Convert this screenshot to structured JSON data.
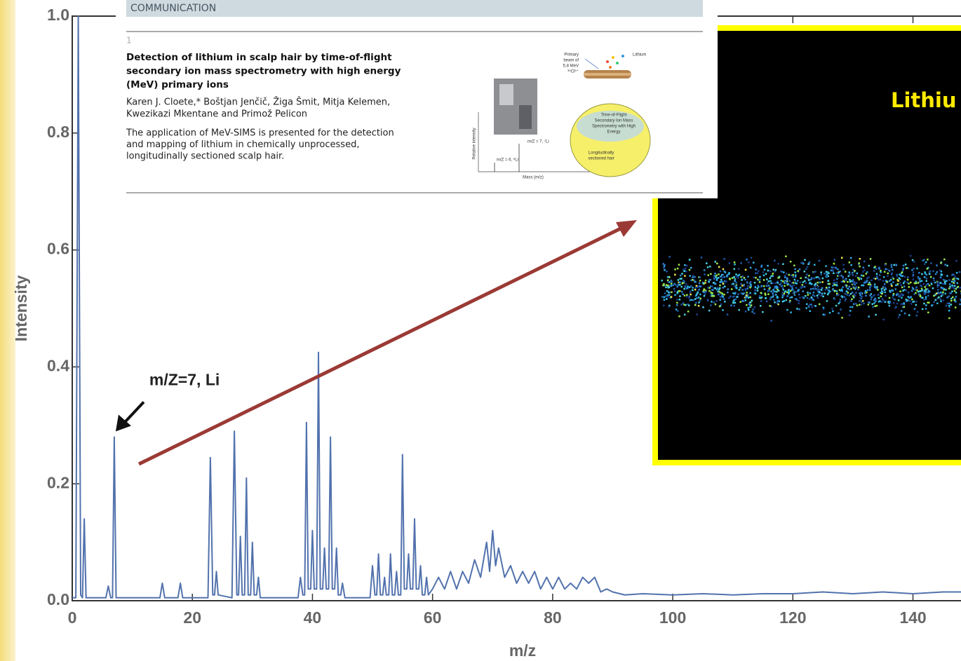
{
  "chart_data": {
    "type": "line",
    "xlabel": "m/z",
    "ylabel": "Intensity",
    "color": "#5272ad",
    "x": [
      0,
      0.6,
      1,
      1.4,
      1.7,
      2,
      2.3,
      5.6,
      6,
      6.4,
      6.7,
      7,
      7.3,
      14.6,
      15,
      15.4,
      17.6,
      18,
      18.4,
      22.6,
      23,
      23.4,
      23.7,
      24,
      24.3,
      26.6,
      27,
      27.4,
      27.7,
      28,
      28.3,
      28.7,
      29,
      29.3,
      29.7,
      30,
      30.3,
      30.7,
      31,
      31.3,
      37.6,
      38,
      38.4,
      38.7,
      39,
      39.3,
      39.7,
      40,
      40.3,
      40.7,
      41,
      41.3,
      41.7,
      42,
      42.3,
      42.7,
      43,
      43.3,
      43.7,
      44,
      44.3,
      44.7,
      45,
      45.4,
      49.6,
      50,
      50.4,
      50.7,
      51,
      51.3,
      51.7,
      52,
      52.3,
      52.7,
      53,
      53.3,
      53.7,
      54,
      54.3,
      54.7,
      55,
      55.3,
      55.7,
      56,
      56.3,
      56.7,
      57,
      57.3,
      57.7,
      58,
      58.3,
      58.7,
      59,
      59.3,
      60,
      61,
      62,
      63,
      64,
      65,
      66,
      67,
      68,
      69,
      69.5,
      70,
      70.5,
      71,
      72,
      73,
      74,
      75,
      76,
      77,
      78,
      79,
      80,
      81,
      82,
      83,
      84,
      85,
      86,
      87,
      88,
      89,
      90,
      92,
      95,
      100,
      105,
      110,
      115,
      120,
      125,
      130,
      135,
      140,
      145,
      148
    ],
    "values": [
      0.005,
      0.005,
      1.0,
      0.01,
      0.005,
      0.14,
      0.005,
      0.005,
      0.025,
      0.005,
      0.005,
      0.28,
      0.005,
      0.005,
      0.03,
      0.005,
      0.005,
      0.03,
      0.005,
      0.005,
      0.245,
      0.01,
      0.01,
      0.05,
      0.01,
      0.005,
      0.29,
      0.01,
      0.01,
      0.11,
      0.01,
      0.01,
      0.21,
      0.01,
      0.01,
      0.1,
      0.01,
      0.01,
      0.04,
      0.005,
      0.005,
      0.04,
      0.01,
      0.01,
      0.305,
      0.02,
      0.02,
      0.12,
      0.02,
      0.02,
      0.425,
      0.02,
      0.02,
      0.09,
      0.02,
      0.02,
      0.28,
      0.02,
      0.02,
      0.09,
      0.01,
      0.01,
      0.03,
      0.005,
      0.005,
      0.06,
      0.01,
      0.01,
      0.08,
      0.01,
      0.01,
      0.04,
      0.01,
      0.01,
      0.08,
      0.01,
      0.01,
      0.05,
      0.01,
      0.01,
      0.25,
      0.02,
      0.02,
      0.08,
      0.02,
      0.02,
      0.14,
      0.02,
      0.02,
      0.06,
      0.01,
      0.01,
      0.04,
      0.01,
      0.02,
      0.04,
      0.02,
      0.05,
      0.02,
      0.05,
      0.03,
      0.07,
      0.04,
      0.1,
      0.05,
      0.12,
      0.06,
      0.09,
      0.04,
      0.06,
      0.03,
      0.05,
      0.03,
      0.05,
      0.02,
      0.04,
      0.02,
      0.04,
      0.02,
      0.03,
      0.02,
      0.04,
      0.03,
      0.04,
      0.015,
      0.02,
      0.015,
      0.01,
      0.012,
      0.01,
      0.012,
      0.01,
      0.012,
      0.012,
      0.015,
      0.012,
      0.015,
      0.012,
      0.015,
      0.015
    ],
    "xlim": [
      0,
      148
    ],
    "ylim": [
      0,
      1
    ],
    "xticks": [
      0,
      20,
      40,
      60,
      80,
      100,
      120,
      140
    ],
    "yticks": [
      {
        "value": 0,
        "label": "0.0"
      },
      0.2,
      0.4,
      0.6,
      0.8,
      {
        "value": 1,
        "label": "1.0"
      }
    ],
    "grid": false,
    "annotations": [
      {
        "text": "m/Z=7, Li",
        "x": 7,
        "y": 0.28
      }
    ]
  },
  "overlay": {
    "paper": {
      "section": "COMMUNICATION",
      "number": "1",
      "title_lines": [
        "Detection of lithium in scalp hair by time-of-flight",
        "secondary ion mass spectrometry with high energy",
        "(MeV) primary ions"
      ],
      "author_lines": [
        "Karen J. Cloete,* Boštjan Jenčič, Žiga Šmit, Mitja Kelemen,",
        "Kwezikazi Mkentane and Primož Pelicon"
      ],
      "abstract_lines": [
        "The application of MeV-SIMS is presented for the detection",
        "and mapping of lithium in chemically unprocessed,",
        "longitudinally sectioned scalp hair."
      ],
      "graphic_labels": {
        "beam": [
          "Primary",
          "beam of",
          "5.8 MeV",
          "³⁵Cl⁶⁺"
        ],
        "lithium": "Lithium",
        "cloud": [
          "Time-of-Flight",
          "Secondary Ion Mass",
          "Spectrometry with High",
          "Energy"
        ],
        "hair": [
          "Longitudinally",
          "sectioned hair"
        ],
        "peak7": "m/Z = 7, ⁷Li",
        "peak6": "m/Z = 6, ⁶Li",
        "xaxis": "Mass (m/z)",
        "yaxis": "Relative intensity"
      }
    },
    "image_label": "Lithiu"
  }
}
